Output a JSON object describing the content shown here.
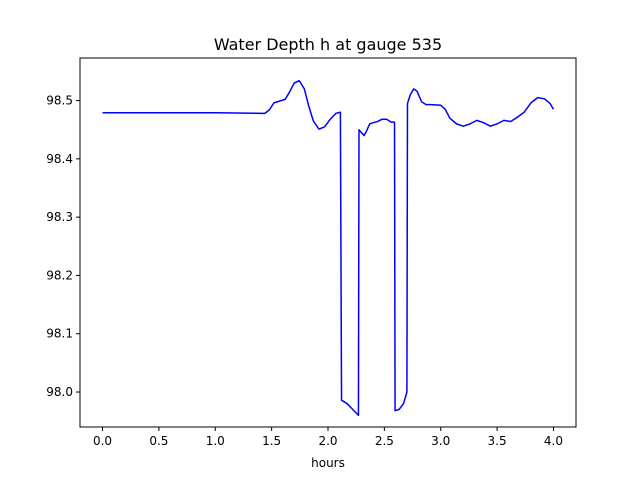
{
  "chart_data": {
    "type": "line",
    "title": "Water Depth h at gauge 535",
    "xlabel": "hours",
    "ylabel": "",
    "xlim": [
      -0.2,
      4.2
    ],
    "ylim": [
      97.94,
      98.573
    ],
    "xticks": [
      0.0,
      0.5,
      1.0,
      1.5,
      2.0,
      2.5,
      3.0,
      3.5,
      4.0
    ],
    "xtick_labels": [
      "0.0",
      "0.5",
      "1.0",
      "1.5",
      "2.0",
      "2.5",
      "3.0",
      "3.5",
      "4.0"
    ],
    "yticks": [
      98.0,
      98.1,
      98.2,
      98.3,
      98.4,
      98.5
    ],
    "ytick_labels": [
      "98.0",
      "98.1",
      "98.2",
      "98.3",
      "98.4",
      "98.5"
    ],
    "grid": false,
    "series": [
      {
        "color": "#0000ff",
        "points": [
          [
            0.0,
            98.479
          ],
          [
            0.5,
            98.479
          ],
          [
            1.0,
            98.479
          ],
          [
            1.44,
            98.478
          ],
          [
            1.48,
            98.484
          ],
          [
            1.52,
            98.496
          ],
          [
            1.57,
            98.499
          ],
          [
            1.62,
            98.502
          ],
          [
            1.66,
            98.515
          ],
          [
            1.7,
            98.53
          ],
          [
            1.745,
            98.534
          ],
          [
            1.79,
            98.52
          ],
          [
            1.83,
            98.49
          ],
          [
            1.87,
            98.465
          ],
          [
            1.92,
            98.451
          ],
          [
            1.97,
            98.455
          ],
          [
            2.02,
            98.468
          ],
          [
            2.07,
            98.478
          ],
          [
            2.11,
            98.48
          ],
          [
            2.12,
            97.986
          ],
          [
            2.17,
            97.98
          ],
          [
            2.22,
            97.97
          ],
          [
            2.27,
            97.96
          ],
          [
            2.275,
            98.45
          ],
          [
            2.3,
            98.444
          ],
          [
            2.32,
            98.44
          ],
          [
            2.34,
            98.447
          ],
          [
            2.37,
            98.46
          ],
          [
            2.4,
            98.462
          ],
          [
            2.44,
            98.464
          ],
          [
            2.48,
            98.468
          ],
          [
            2.52,
            98.468
          ],
          [
            2.56,
            98.463
          ],
          [
            2.59,
            98.463
          ],
          [
            2.595,
            97.968
          ],
          [
            2.63,
            97.97
          ],
          [
            2.67,
            97.98
          ],
          [
            2.7,
            98.0
          ],
          [
            2.705,
            98.495
          ],
          [
            2.73,
            98.51
          ],
          [
            2.76,
            98.52
          ],
          [
            2.79,
            98.516
          ],
          [
            2.83,
            98.498
          ],
          [
            2.87,
            98.493
          ],
          [
            2.92,
            98.493
          ],
          [
            3.0,
            98.492
          ],
          [
            3.04,
            98.485
          ],
          [
            3.08,
            98.47
          ],
          [
            3.14,
            98.46
          ],
          [
            3.2,
            98.456
          ],
          [
            3.26,
            98.46
          ],
          [
            3.32,
            98.466
          ],
          [
            3.38,
            98.462
          ],
          [
            3.44,
            98.456
          ],
          [
            3.5,
            98.46
          ],
          [
            3.56,
            98.466
          ],
          [
            3.62,
            98.464
          ],
          [
            3.67,
            98.47
          ],
          [
            3.74,
            98.48
          ],
          [
            3.8,
            98.496
          ],
          [
            3.86,
            98.505
          ],
          [
            3.92,
            98.503
          ],
          [
            3.97,
            98.495
          ],
          [
            4.0,
            98.485
          ]
        ]
      }
    ]
  }
}
